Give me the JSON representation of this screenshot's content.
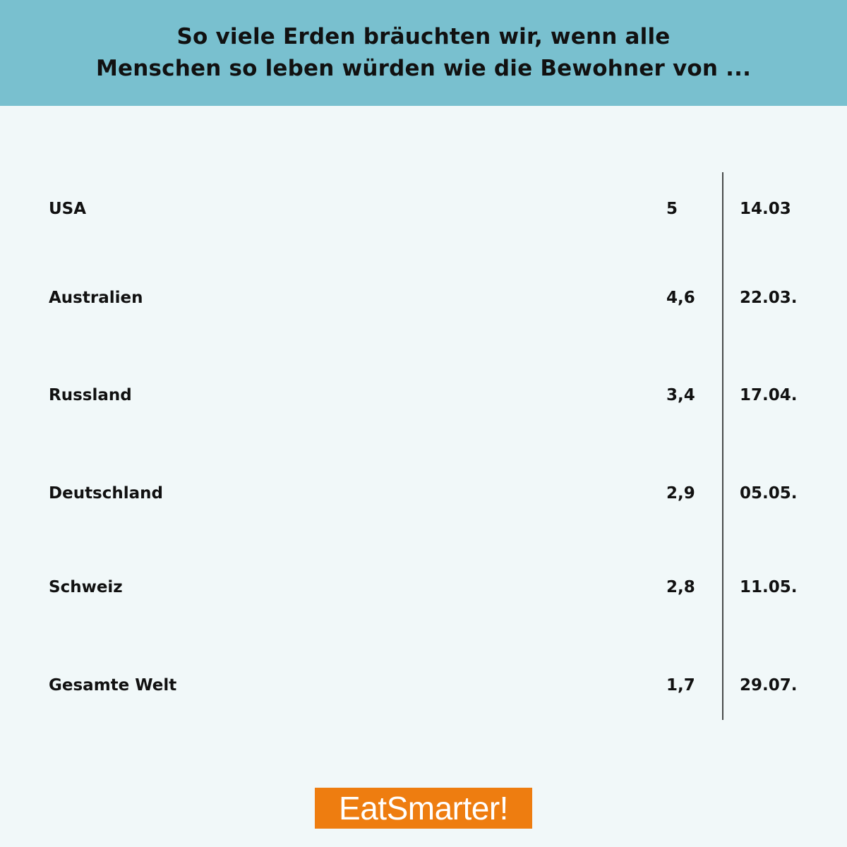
{
  "header": {
    "title_line1": "So viele Erden bräuchten wir, wenn alle",
    "title_line2": "Menschen so leben würden wie die Bewohner von ..."
  },
  "chart_data": {
    "type": "pictogram",
    "unit_icon": "earth-icon",
    "rows": [
      {
        "country": "USA",
        "earths": 5,
        "earths_label": "5",
        "date": "14.03"
      },
      {
        "country": "Australien",
        "earths": 4.6,
        "earths_label": "4,6",
        "date": "22.03."
      },
      {
        "country": "Russland",
        "earths": 3.4,
        "earths_label": "3,4",
        "date": "17.04."
      },
      {
        "country": "Deutschland",
        "earths": 2.9,
        "earths_label": "2,9",
        "date": "05.05."
      },
      {
        "country": "Schweiz",
        "earths": 2.8,
        "earths_label": "2,8",
        "date": "11.05."
      },
      {
        "country": "Gesamte Welt",
        "earths": 1.7,
        "earths_label": "1,7",
        "date": "29.07."
      }
    ]
  },
  "colors": {
    "header_bg": "#79c0cf",
    "page_bg": "#f1f8f9",
    "ocean": "#74bccd",
    "land": "#82c79c",
    "outline": "#111111",
    "logo_bg": "#ee7d10"
  },
  "logo": {
    "text": "EatSmarter!"
  }
}
